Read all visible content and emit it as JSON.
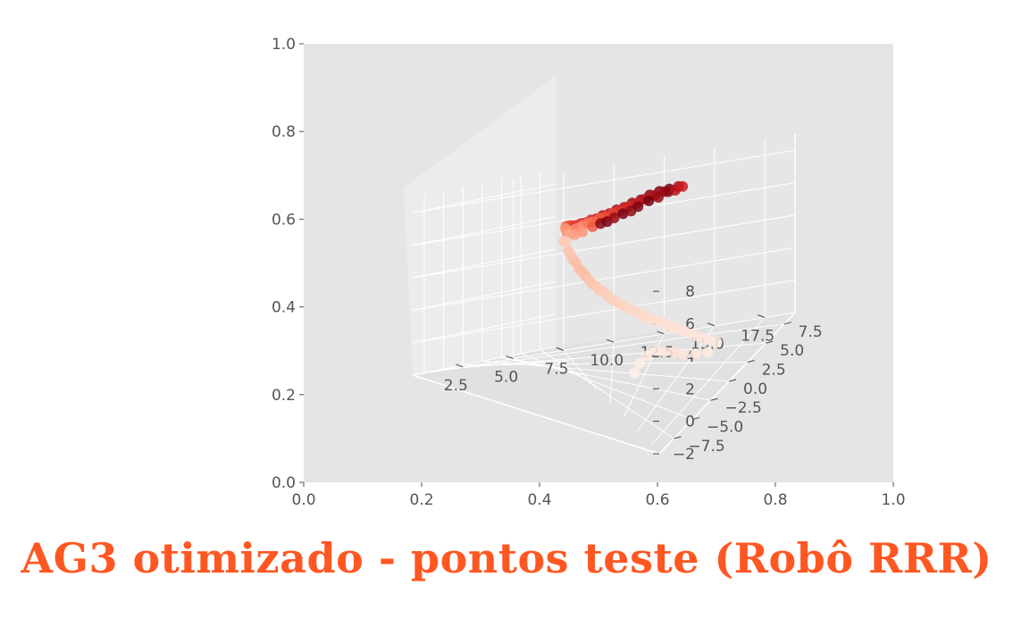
{
  "title": "AG3 otimizado - pontos teste (Robô RRR)",
  "colors": {
    "title": "#ff5722",
    "panel_bg": "#e5e5e5",
    "pane_left": "#ececec",
    "pane_right": "#e1e1e1",
    "tick_text": "#555555",
    "grid": "#ffffff",
    "colormap": "Reds"
  },
  "chart_data": {
    "type": "scatter",
    "projection": "3d",
    "title": "",
    "xlabel": "",
    "ylabel": "",
    "zlabel": "",
    "grid": true,
    "outer_axes": {
      "xlim": [
        0.0,
        1.0
      ],
      "ylim": [
        0.0,
        1.0
      ],
      "xticks": [
        "0.0",
        "0.2",
        "0.4",
        "0.6",
        "0.8",
        "1.0"
      ],
      "yticks": [
        "0.0",
        "0.2",
        "0.4",
        "0.6",
        "0.8",
        "1.0"
      ]
    },
    "axis3d": {
      "xlim": [
        0,
        19
      ],
      "ylim": [
        -9.5,
        9
      ],
      "zlim": [
        -2,
        9
      ],
      "xticks": [
        2.5,
        5.0,
        7.5,
        10.0,
        12.5,
        15.0,
        17.5
      ],
      "xtick_labels": [
        "2.5",
        "5.0",
        "7.5",
        "10.0",
        "12.5",
        "15.0",
        "17.5"
      ],
      "yticks": [
        -7.5,
        -5.0,
        -2.5,
        0.0,
        2.5,
        5.0,
        7.5
      ],
      "ytick_labels": [
        "−7.5",
        "−5.0",
        "−2.5",
        "0.0",
        "2.5",
        "5.0",
        "7.5"
      ],
      "zticks": [
        -2,
        0,
        2,
        4,
        6,
        8
      ],
      "ztick_labels": [
        "−2",
        "0",
        "2",
        "4",
        "6",
        "8"
      ]
    },
    "series": [
      {
        "points": [
          [
            4.3,
            -6.5,
            6.8,
            0.55
          ],
          [
            5.0,
            -6.0,
            7.0,
            0.6
          ],
          [
            5.6,
            -5.4,
            7.1,
            0.62
          ],
          [
            6.2,
            -4.9,
            7.2,
            0.65
          ],
          [
            6.8,
            -4.4,
            7.4,
            0.68
          ],
          [
            7.4,
            -3.9,
            7.5,
            0.7
          ],
          [
            8.0,
            -3.4,
            7.7,
            0.72
          ],
          [
            8.6,
            -2.9,
            7.8,
            0.75
          ],
          [
            9.2,
            -2.4,
            8.0,
            0.78
          ],
          [
            9.8,
            -1.9,
            8.1,
            0.8
          ],
          [
            10.4,
            -1.4,
            8.3,
            0.82
          ],
          [
            11.0,
            -0.9,
            8.4,
            0.85
          ],
          [
            11.6,
            -0.4,
            8.6,
            0.88
          ],
          [
            12.2,
            0.1,
            8.7,
            0.9
          ],
          [
            12.8,
            0.6,
            8.9,
            0.92
          ],
          [
            13.4,
            1.1,
            9.0,
            0.95
          ],
          [
            14.0,
            1.6,
            9.0,
            0.98
          ],
          [
            14.5,
            2.1,
            9.0,
            0.85
          ],
          [
            4.6,
            -6.2,
            6.5,
            0.5
          ],
          [
            5.3,
            -5.7,
            6.7,
            0.45
          ],
          [
            5.9,
            -5.1,
            6.9,
            0.4
          ],
          [
            6.5,
            -4.6,
            7.1,
            0.42
          ],
          [
            7.1,
            -4.1,
            7.3,
            0.38
          ],
          [
            7.7,
            -3.6,
            7.5,
            0.44
          ],
          [
            8.3,
            -3.1,
            7.6,
            0.48
          ],
          [
            8.9,
            -2.6,
            7.8,
            0.52
          ],
          [
            9.5,
            -2.1,
            7.9,
            0.58
          ],
          [
            10.1,
            -1.6,
            8.1,
            0.62
          ],
          [
            10.7,
            -1.1,
            8.2,
            0.66
          ],
          [
            11.3,
            -0.6,
            8.4,
            0.7
          ],
          [
            11.9,
            -0.1,
            8.5,
            0.74
          ],
          [
            12.5,
            0.4,
            8.7,
            0.78
          ],
          [
            13.1,
            0.9,
            8.8,
            0.82
          ],
          [
            13.7,
            1.4,
            8.9,
            0.86
          ],
          [
            4.0,
            -6.8,
            6.6,
            0.35
          ],
          [
            4.8,
            -6.3,
            6.4,
            0.3
          ],
          [
            6.0,
            -5.0,
            6.6,
            0.33
          ],
          [
            7.0,
            -4.3,
            6.9,
            0.36
          ],
          [
            8.2,
            -3.2,
            7.3,
            0.55
          ],
          [
            9.0,
            -2.5,
            7.5,
            0.92
          ],
          [
            9.6,
            -2.0,
            7.6,
            0.95
          ],
          [
            10.2,
            -1.5,
            7.8,
            0.88
          ],
          [
            10.9,
            -0.9,
            8.0,
            0.96
          ],
          [
            11.5,
            -0.4,
            8.1,
            0.9
          ],
          [
            12.0,
            0.0,
            8.3,
            0.94
          ],
          [
            12.7,
            0.7,
            8.5,
            0.97
          ],
          [
            13.3,
            1.2,
            8.6,
            0.88
          ],
          [
            13.9,
            1.7,
            8.8,
            0.92
          ],
          [
            14.3,
            2.0,
            8.8,
            0.8
          ],
          [
            14.7,
            2.4,
            8.9,
            0.75
          ]
        ]
      },
      {
        "points": [
          [
            4.0,
            -6.5,
            5.8,
            0.2
          ],
          [
            4.8,
            -6.0,
            5.4,
            0.22
          ],
          [
            5.6,
            -5.6,
            5.0,
            0.24
          ],
          [
            6.4,
            -5.1,
            4.6,
            0.25
          ],
          [
            7.2,
            -4.7,
            4.3,
            0.26
          ],
          [
            8.0,
            -4.2,
            3.9,
            0.22
          ],
          [
            8.8,
            -3.8,
            3.6,
            0.2
          ],
          [
            9.6,
            -3.3,
            3.3,
            0.18
          ],
          [
            10.4,
            -2.9,
            3.0,
            0.16
          ],
          [
            11.2,
            -2.4,
            2.7,
            0.15
          ],
          [
            12.0,
            -2.0,
            2.4,
            0.14
          ],
          [
            12.8,
            -1.5,
            2.0,
            0.12
          ],
          [
            13.6,
            -1.1,
            1.7,
            0.1
          ],
          [
            14.4,
            -0.6,
            1.4,
            0.09
          ],
          [
            15.2,
            -0.2,
            1.0,
            0.08
          ],
          [
            16.0,
            0.3,
            0.6,
            0.07
          ],
          [
            16.8,
            0.7,
            0.2,
            0.06
          ],
          [
            17.5,
            1.2,
            -0.2,
            0.05
          ],
          [
            17.2,
            0.4,
            -0.5,
            0.05
          ],
          [
            16.6,
            -0.4,
            -0.3,
            0.06
          ],
          [
            16.0,
            -1.2,
            -0.1,
            0.07
          ],
          [
            15.4,
            -1.8,
            0.2,
            0.08
          ],
          [
            14.8,
            -2.5,
            0.4,
            0.06
          ],
          [
            14.2,
            -3.1,
            0.6,
            0.05
          ],
          [
            13.6,
            -3.8,
            0.4,
            0.04
          ],
          [
            13.0,
            -4.4,
            0.0,
            0.03
          ],
          [
            12.6,
            -5.0,
            -0.5,
            0.03
          ],
          [
            4.5,
            -6.1,
            5.9,
            0.18
          ],
          [
            5.2,
            -5.9,
            5.2,
            0.21
          ],
          [
            6.0,
            -5.4,
            4.9,
            0.23
          ],
          [
            6.8,
            -4.9,
            4.5,
            0.24
          ],
          [
            7.6,
            -4.5,
            4.1,
            0.21
          ],
          [
            8.4,
            -4.0,
            3.8,
            0.19
          ],
          [
            9.2,
            -3.5,
            3.5,
            0.17
          ],
          [
            10.0,
            -3.1,
            3.1,
            0.16
          ],
          [
            10.8,
            -2.6,
            2.8,
            0.15
          ],
          [
            11.6,
            -2.2,
            2.5,
            0.13
          ],
          [
            12.4,
            -1.7,
            2.2,
            0.12
          ],
          [
            13.2,
            -1.3,
            1.9,
            0.11
          ],
          [
            14.0,
            -0.8,
            1.6,
            0.1
          ],
          [
            14.8,
            -0.4,
            1.2,
            0.09
          ],
          [
            15.6,
            0.1,
            0.8,
            0.08
          ],
          [
            16.4,
            0.5,
            0.4,
            0.07
          ],
          [
            17.0,
            1.0,
            0.0,
            0.06
          ]
        ]
      }
    ]
  }
}
